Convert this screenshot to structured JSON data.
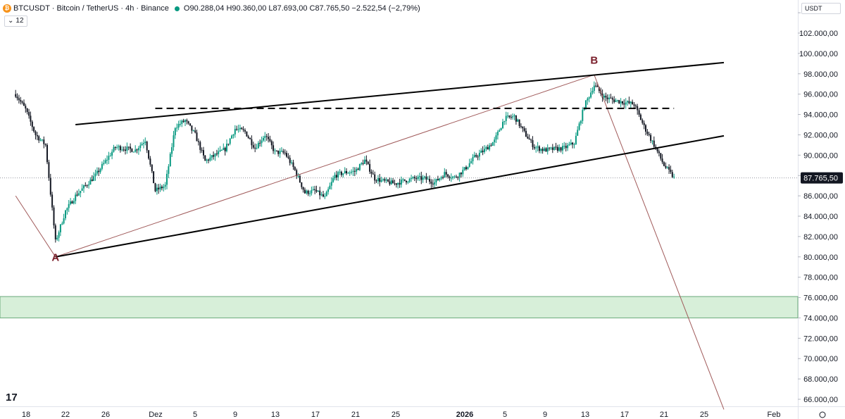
{
  "header": {
    "symbol": "BTCUSDT · Bitcoin / TetherUS · 4h · Binance",
    "ohlc": "O90.288,04 H90.360,00 L87.693,00 C87.765,50 −2.522,54 (−2,79%)",
    "indicator_count": "12"
  },
  "price_axis": {
    "currency": "USDT",
    "ticks": [
      66000,
      68000,
      70000,
      72000,
      74000,
      76000,
      78000,
      80000,
      82000,
      84000,
      86000,
      88000,
      90000,
      92000,
      94000,
      96000,
      98000,
      100000,
      102000
    ],
    "tick_labels": [
      "66.000,00",
      "68.000,00",
      "70.000,00",
      "72.000,00",
      "74.000,00",
      "76.000,00",
      "78.000,00",
      "80.000,00",
      "82.000,00",
      "84.000,00",
      "86.000,00",
      "88.000,00",
      "90.000,00",
      "92.000,00",
      "94.000,00",
      "96.000,00",
      "98.000,00",
      "100.000,00",
      "102.000,00"
    ],
    "last_price": 87765.5,
    "last_price_label": "87.765,50"
  },
  "time_axis": {
    "labels": [
      "18",
      "22",
      "26",
      "Dez",
      "5",
      "9",
      "13",
      "17",
      "21",
      "25",
      "2026",
      "5",
      "9",
      "13",
      "17",
      "21",
      "25",
      "Feb"
    ],
    "bold": [
      "2026"
    ]
  },
  "chart_data": {
    "type": "candlestick",
    "timeframe": "4h",
    "x_range": [
      "2025-11-18",
      "2026-02-01"
    ],
    "y_range": [
      65000,
      104000
    ],
    "annotations": [
      {
        "type": "label",
        "text": "A",
        "date": "2025-11-21",
        "price": 79600
      },
      {
        "type": "label",
        "text": "B",
        "date": "2026-01-14",
        "price": 99000
      }
    ],
    "channel": {
      "upper": [
        [
          "2025-11-23",
          93000
        ],
        [
          "2026-01-27",
          99100
        ]
      ],
      "lower": [
        [
          "2025-11-21",
          80000
        ],
        [
          "2026-01-27",
          91900
        ]
      ]
    },
    "resistance_dashed": {
      "price": 94600,
      "from": "2025-12-01",
      "to": "2026-01-22"
    },
    "projection_lines": [
      [
        [
          "2025-11-17",
          86000
        ],
        [
          "2025-11-21",
          80000
        ],
        [
          "2026-01-14",
          97900
        ],
        [
          "2026-01-27",
          65000
        ]
      ]
    ],
    "support_zone": {
      "from_price": 74000,
      "to_price": 76100
    },
    "price_path": [
      [
        "2025-11-17",
        96000
      ],
      [
        "2025-11-18",
        94500
      ],
      [
        "2025-11-19",
        92000
      ],
      [
        "2025-11-20",
        91000
      ],
      [
        "2025-11-21",
        81500
      ],
      [
        "2025-11-22",
        84500
      ],
      [
        "2025-11-23",
        86000
      ],
      [
        "2025-11-25",
        88000
      ],
      [
        "2025-11-27",
        90800
      ],
      [
        "2025-11-29",
        90500
      ],
      [
        "2025-11-30",
        91500
      ],
      [
        "2025-12-01",
        86500
      ],
      [
        "2025-12-02",
        87000
      ],
      [
        "2025-12-03",
        92800
      ],
      [
        "2025-12-04",
        93400
      ],
      [
        "2025-12-05",
        92000
      ],
      [
        "2025-12-06",
        89400
      ],
      [
        "2025-12-07",
        90000
      ],
      [
        "2025-12-08",
        90600
      ],
      [
        "2025-12-09",
        92600
      ],
      [
        "2025-12-10",
        92300
      ],
      [
        "2025-12-11",
        90700
      ],
      [
        "2025-12-12",
        92000
      ],
      [
        "2025-12-13",
        90300
      ],
      [
        "2025-12-14",
        90200
      ],
      [
        "2025-12-15",
        88500
      ],
      [
        "2025-12-16",
        86300
      ],
      [
        "2025-12-17",
        86500
      ],
      [
        "2025-12-18",
        85800
      ],
      [
        "2025-12-19",
        88000
      ],
      [
        "2025-12-20",
        88300
      ],
      [
        "2025-12-21",
        88400
      ],
      [
        "2025-12-22",
        89500
      ],
      [
        "2025-12-23",
        87700
      ],
      [
        "2025-12-24",
        87400
      ],
      [
        "2025-12-25",
        87200
      ],
      [
        "2025-12-26",
        87500
      ],
      [
        "2025-12-27",
        87700
      ],
      [
        "2025-12-28",
        87700
      ],
      [
        "2025-12-29",
        87300
      ],
      [
        "2025-12-30",
        88200
      ],
      [
        "2025-12-31",
        87800
      ],
      [
        "2026-01-01",
        88600
      ],
      [
        "2026-01-02",
        89800
      ],
      [
        "2026-01-03",
        90500
      ],
      [
        "2026-01-04",
        91400
      ],
      [
        "2026-01-05",
        93600
      ],
      [
        "2026-01-06",
        93800
      ],
      [
        "2026-01-07",
        92200
      ],
      [
        "2026-01-08",
        90800
      ],
      [
        "2026-01-09",
        90500
      ],
      [
        "2026-01-10",
        90600
      ],
      [
        "2026-01-11",
        90700
      ],
      [
        "2026-01-12",
        91200
      ],
      [
        "2026-01-13",
        94800
      ],
      [
        "2026-01-14",
        96900
      ],
      [
        "2026-01-15",
        95700
      ],
      [
        "2026-01-16",
        95400
      ],
      [
        "2026-01-17",
        95200
      ],
      [
        "2026-01-18",
        95000
      ],
      [
        "2026-01-19",
        92800
      ],
      [
        "2026-01-20",
        91000
      ],
      [
        "2026-01-21",
        89000
      ],
      [
        "2026-01-22",
        87765.5
      ]
    ],
    "colors": {
      "up": "#089981",
      "down": "#131722",
      "channel": "#000000",
      "projection": "#a05a5a",
      "label": "#7a1f2b",
      "zone_fill": "#d7efd9",
      "zone_border": "#6aa97a"
    }
  }
}
